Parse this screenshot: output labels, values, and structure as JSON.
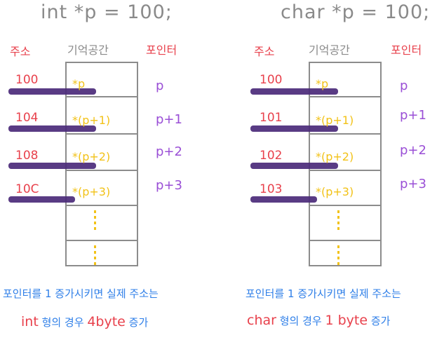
{
  "left": {
    "title": "int *p = 100;",
    "headers": {
      "address": "주소",
      "memory": "기억공간",
      "pointer": "포인터"
    },
    "addresses": [
      "100",
      "104",
      "108",
      "10C"
    ],
    "cells": [
      "*p",
      "*(p+1)",
      "*(p+2)",
      "*(p+3)"
    ],
    "pointers": [
      "p",
      "p+1",
      "p+2",
      "p+3"
    ],
    "caption_line1": "포인터를 1 증가시키면 실제 주소는",
    "caption_line2_a": "int",
    "caption_line2_b": "형의 경우",
    "caption_line2_c": "4byte",
    "caption_line2_d": "증가"
  },
  "right": {
    "title": "char *p = 100;",
    "headers": {
      "address": "주소",
      "memory": "기억공간",
      "pointer": "포인터"
    },
    "addresses": [
      "100",
      "101",
      "102",
      "103"
    ],
    "cells": [
      "*p",
      "*(p+1)",
      "*(p+2)",
      "*(p+3)"
    ],
    "pointers": [
      "p",
      "p+1",
      "p+2",
      "p+3"
    ],
    "caption_line1": "포인터를 1 증가시키면 실제 주소는",
    "caption_line2_a": "char",
    "caption_line2_b": "형의 경우",
    "caption_line2_c": "1 byte",
    "caption_line2_d": "증가"
  },
  "colors": {
    "address": "#e8414c",
    "pointer": "#9a4fd6",
    "cell": "#f2c218",
    "caption": "#2f7fe8",
    "arrow": "#4b2a7a",
    "box": "#8c8c8c"
  }
}
